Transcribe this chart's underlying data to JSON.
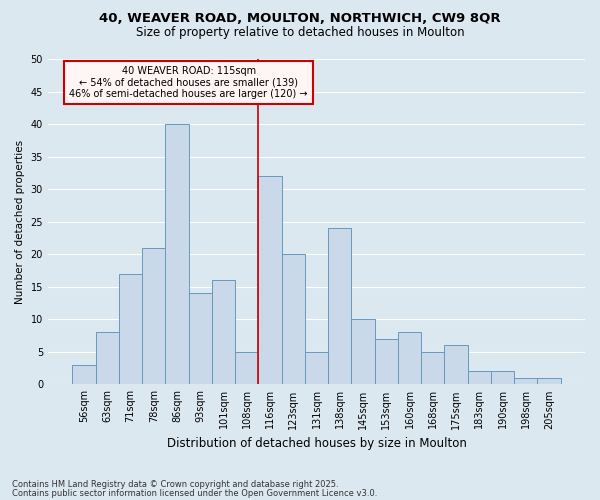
{
  "title1": "40, WEAVER ROAD, MOULTON, NORTHWICH, CW9 8QR",
  "title2": "Size of property relative to detached houses in Moulton",
  "xlabel": "Distribution of detached houses by size in Moulton",
  "ylabel": "Number of detached properties",
  "footnote1": "Contains HM Land Registry data © Crown copyright and database right 2025.",
  "footnote2": "Contains public sector information licensed under the Open Government Licence v3.0.",
  "categories": [
    "56sqm",
    "63sqm",
    "71sqm",
    "78sqm",
    "86sqm",
    "93sqm",
    "101sqm",
    "108sqm",
    "116sqm",
    "123sqm",
    "131sqm",
    "138sqm",
    "145sqm",
    "153sqm",
    "160sqm",
    "168sqm",
    "175sqm",
    "183sqm",
    "190sqm",
    "198sqm",
    "205sqm"
  ],
  "values": [
    3,
    8,
    17,
    21,
    40,
    14,
    16,
    5,
    32,
    20,
    5,
    24,
    10,
    7,
    8,
    5,
    6,
    2,
    2,
    1,
    1
  ],
  "bar_color": "#c9d9ea",
  "bar_edge_color": "#6699bb",
  "vline_color": "#cc0000",
  "vline_x_idx": 8,
  "annotation_text": "40 WEAVER ROAD: 115sqm\n← 54% of detached houses are smaller (139)\n46% of semi-detached houses are larger (120) →",
  "annotation_box_facecolor": "#fff5f5",
  "annotation_box_edge": "#cc0000",
  "background_color": "#dce8f0",
  "grid_color": "#ffffff",
  "ylim": [
    0,
    50
  ],
  "yticks": [
    0,
    5,
    10,
    15,
    20,
    25,
    30,
    35,
    40,
    45,
    50
  ],
  "title1_fontsize": 9.5,
  "title2_fontsize": 8.5,
  "xlabel_fontsize": 8.5,
  "ylabel_fontsize": 7.5,
  "tick_fontsize": 7,
  "footnote_fontsize": 6
}
